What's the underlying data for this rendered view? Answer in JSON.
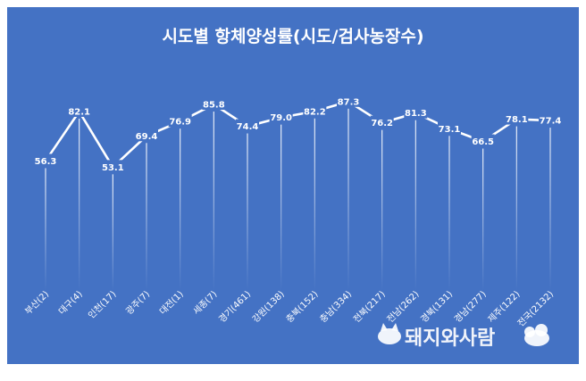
{
  "chart_data": {
    "type": "line",
    "title": "시도별 항체양성률(시도/검사농장수)",
    "categories": [
      "부산(2)",
      "대구(4)",
      "인천(17)",
      "광주(7)",
      "대전(1)",
      "세종(7)",
      "경기(461)",
      "강원(138)",
      "충북(152)",
      "충남(334)",
      "전북(217)",
      "전남(262)",
      "경북(131)",
      "경남(277)",
      "제주(122)",
      "전국(2132)"
    ],
    "values": [
      56.3,
      82.1,
      53.1,
      69.4,
      76.9,
      85.8,
      74.4,
      79.0,
      82.2,
      87.3,
      76.2,
      81.3,
      73.1,
      66.5,
      78.1,
      77.4
    ],
    "value_labels": [
      "56.3",
      "82.1",
      "53.1",
      "69.4",
      "76.9",
      "85.8",
      "74.4",
      "79.0",
      "82.2",
      "87.3",
      "76.2",
      "81.3",
      "73.1",
      "66.5",
      "78.1",
      "77.4"
    ],
    "xlabel": "",
    "ylabel": "",
    "ylim": [
      0,
      100
    ],
    "grid": false,
    "line_color": "#ffffff",
    "background_color": "#4472C4",
    "drop_lines": true
  },
  "watermark": {
    "text": "돼지와사람",
    "icon": "pig-icon"
  }
}
